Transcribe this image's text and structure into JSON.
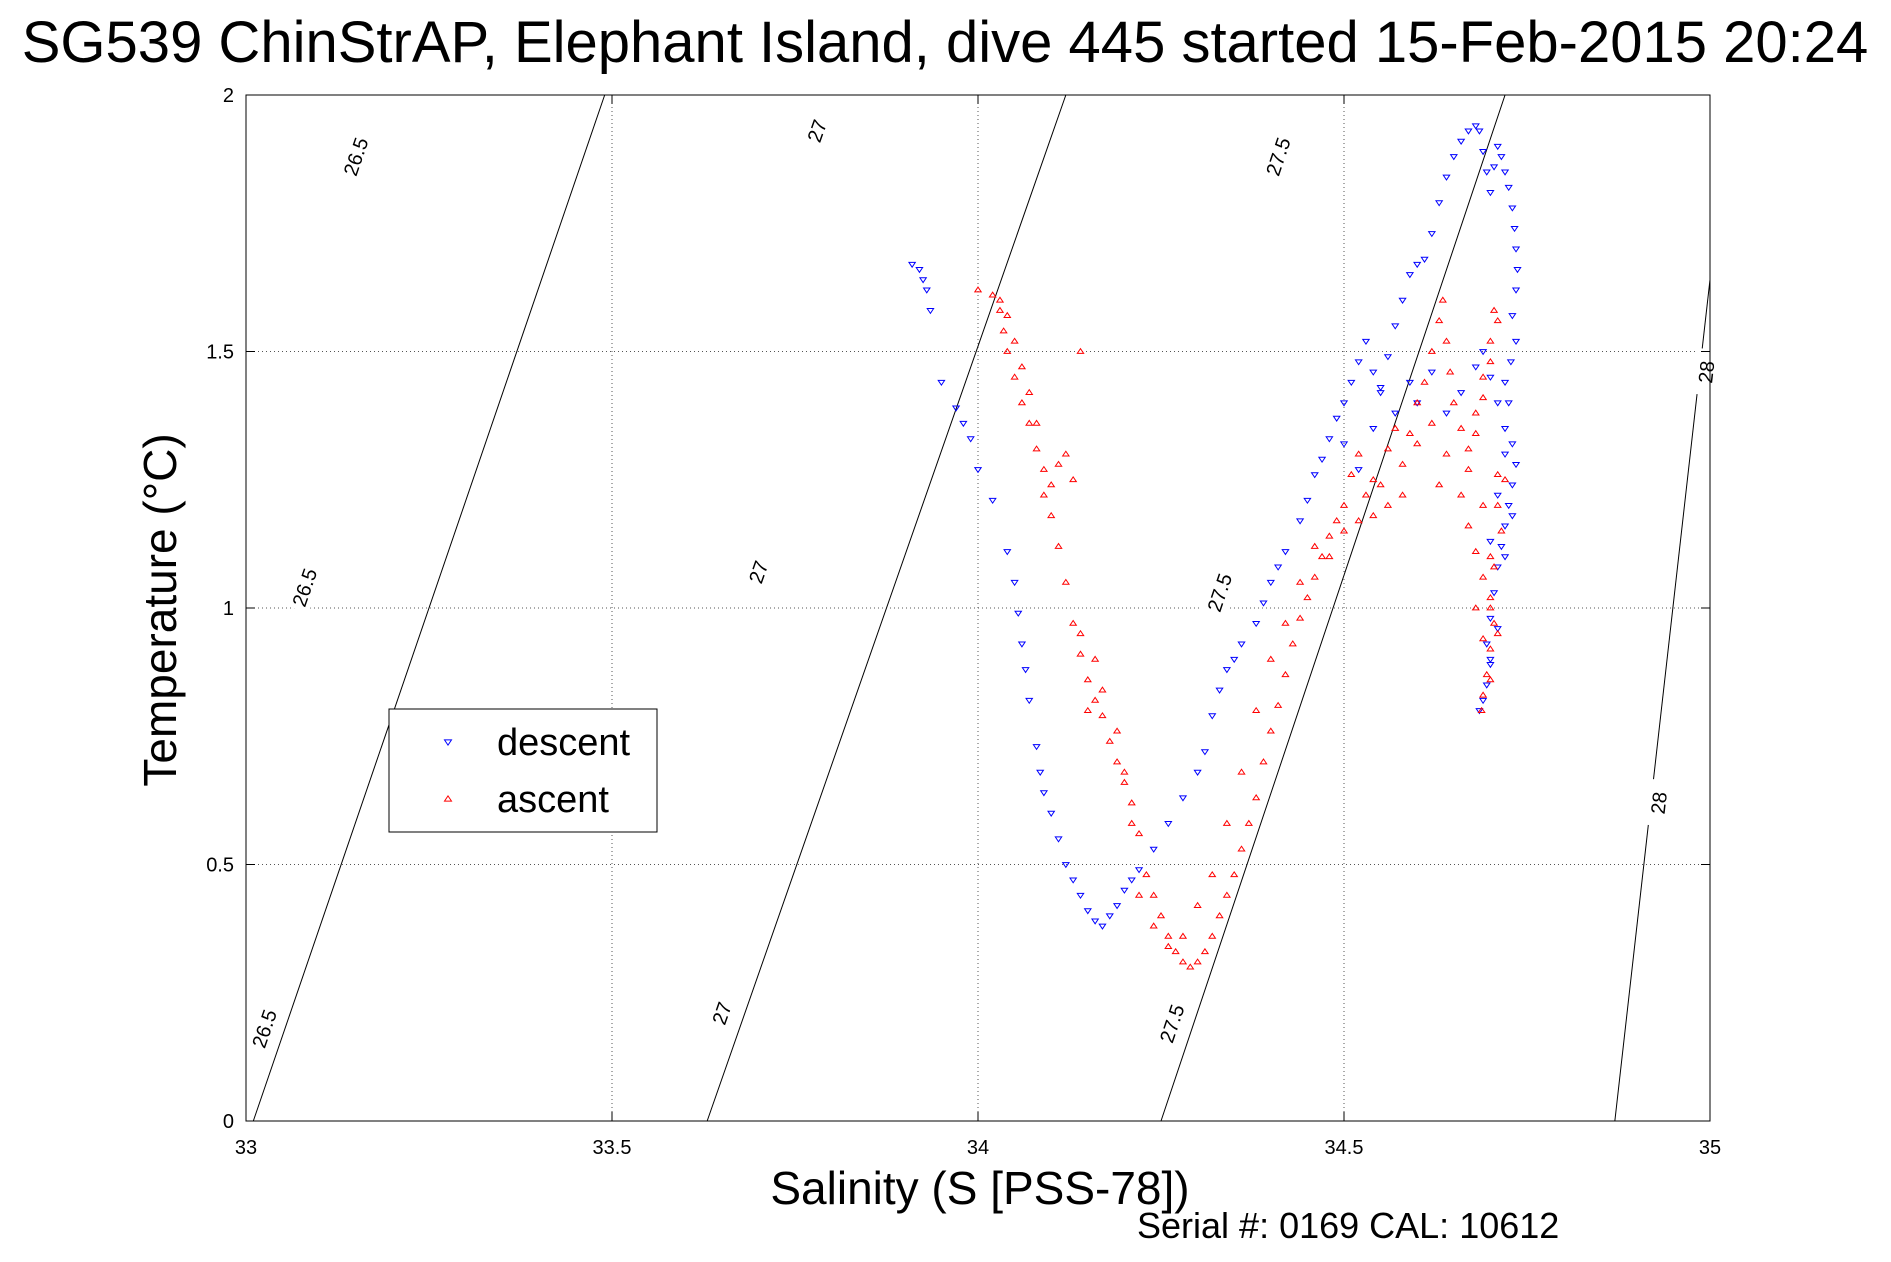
{
  "chart_data": {
    "type": "scatter",
    "title": "SG539 ChinStrAP, Elephant Island, dive 445 started 15-Feb-2015 20:24",
    "xlabel": "Salinity (S [PSS-78])",
    "ylabel": "Temperature (°C)",
    "xlim": [
      33,
      35
    ],
    "ylim": [
      0,
      2
    ],
    "x_ticks": [
      "33",
      "33.5",
      "34",
      "34.5",
      "35"
    ],
    "y_ticks": [
      "0",
      "0.5",
      "1",
      "1.5",
      "2"
    ],
    "grid": true,
    "legend_position": "center-left",
    "serial_text": "Serial #: 0169 CAL: 10612",
    "density_contours": [
      {
        "level": "26.5",
        "points": [
          [
            33.01,
            0
          ],
          [
            33.49,
            2
          ]
        ],
        "label_positions": [
          [
            33.025,
            0.18
          ],
          [
            33.08,
            1.04
          ],
          [
            33.15,
            1.88
          ]
        ]
      },
      {
        "level": "27",
        "points": [
          [
            33.63,
            0
          ],
          [
            34.12,
            2
          ]
        ],
        "label_positions": [
          [
            33.65,
            0.21
          ],
          [
            33.7,
            1.07
          ],
          [
            33.78,
            1.93
          ]
        ]
      },
      {
        "level": "27.5",
        "points": [
          [
            34.25,
            0
          ],
          [
            34.72,
            2
          ]
        ],
        "label_positions": [
          [
            34.265,
            0.19
          ],
          [
            34.33,
            1.03
          ],
          [
            34.41,
            1.88
          ]
        ]
      },
      {
        "level": "28",
        "points": [
          [
            34.87,
            0
          ],
          [
            35,
            1.64
          ]
        ],
        "label_positions": [
          [
            34.93,
            0.62
          ],
          [
            34.995,
            1.46
          ]
        ]
      }
    ],
    "series": [
      {
        "name": "descent",
        "color": "#0000ff",
        "marker": "triangle-down",
        "points": [
          [
            33.91,
            1.67
          ],
          [
            33.92,
            1.66
          ],
          [
            33.925,
            1.64
          ],
          [
            33.93,
            1.62
          ],
          [
            33.935,
            1.58
          ],
          [
            33.95,
            1.44
          ],
          [
            33.97,
            1.39
          ],
          [
            33.98,
            1.36
          ],
          [
            33.99,
            1.33
          ],
          [
            34.0,
            1.27
          ],
          [
            34.02,
            1.21
          ],
          [
            34.04,
            1.11
          ],
          [
            34.05,
            1.05
          ],
          [
            34.055,
            0.99
          ],
          [
            34.06,
            0.93
          ],
          [
            34.065,
            0.88
          ],
          [
            34.07,
            0.82
          ],
          [
            34.08,
            0.73
          ],
          [
            34.085,
            0.68
          ],
          [
            34.09,
            0.64
          ],
          [
            34.1,
            0.6
          ],
          [
            34.11,
            0.55
          ],
          [
            34.12,
            0.5
          ],
          [
            34.13,
            0.47
          ],
          [
            34.14,
            0.44
          ],
          [
            34.15,
            0.41
          ],
          [
            34.16,
            0.39
          ],
          [
            34.17,
            0.38
          ],
          [
            34.18,
            0.4
          ],
          [
            34.19,
            0.42
          ],
          [
            34.2,
            0.45
          ],
          [
            34.21,
            0.47
          ],
          [
            34.22,
            0.49
          ],
          [
            34.24,
            0.53
          ],
          [
            34.26,
            0.58
          ],
          [
            34.28,
            0.63
          ],
          [
            34.3,
            0.68
          ],
          [
            34.31,
            0.72
          ],
          [
            34.32,
            0.79
          ],
          [
            34.33,
            0.84
          ],
          [
            34.34,
            0.88
          ],
          [
            34.35,
            0.9
          ],
          [
            34.36,
            0.93
          ],
          [
            34.38,
            0.97
          ],
          [
            34.39,
            1.01
          ],
          [
            34.4,
            1.05
          ],
          [
            34.41,
            1.08
          ],
          [
            34.42,
            1.11
          ],
          [
            34.44,
            1.17
          ],
          [
            34.45,
            1.21
          ],
          [
            34.46,
            1.26
          ],
          [
            34.47,
            1.29
          ],
          [
            34.48,
            1.33
          ],
          [
            34.49,
            1.37
          ],
          [
            34.5,
            1.4
          ],
          [
            34.51,
            1.44
          ],
          [
            34.52,
            1.48
          ],
          [
            34.53,
            1.52
          ],
          [
            34.54,
            1.46
          ],
          [
            34.55,
            1.43
          ],
          [
            34.56,
            1.49
          ],
          [
            34.57,
            1.55
          ],
          [
            34.58,
            1.6
          ],
          [
            34.59,
            1.65
          ],
          [
            34.6,
            1.67
          ],
          [
            34.61,
            1.68
          ],
          [
            34.62,
            1.73
          ],
          [
            34.63,
            1.79
          ],
          [
            34.64,
            1.84
          ],
          [
            34.65,
            1.88
          ],
          [
            34.66,
            1.91
          ],
          [
            34.67,
            1.93
          ],
          [
            34.68,
            1.94
          ],
          [
            34.685,
            1.93
          ],
          [
            34.69,
            1.89
          ],
          [
            34.695,
            1.85
          ],
          [
            34.7,
            1.81
          ],
          [
            34.705,
            1.86
          ],
          [
            34.71,
            1.9
          ],
          [
            34.715,
            1.88
          ],
          [
            34.72,
            1.85
          ],
          [
            34.725,
            1.82
          ],
          [
            34.73,
            1.78
          ],
          [
            34.733,
            1.74
          ],
          [
            34.735,
            1.7
          ],
          [
            34.737,
            1.66
          ],
          [
            34.735,
            1.62
          ],
          [
            34.73,
            1.57
          ],
          [
            34.735,
            1.52
          ],
          [
            34.728,
            1.48
          ],
          [
            34.72,
            1.44
          ],
          [
            34.725,
            1.4
          ],
          [
            34.72,
            1.35
          ],
          [
            34.73,
            1.32
          ],
          [
            34.735,
            1.28
          ],
          [
            34.73,
            1.24
          ],
          [
            34.725,
            1.2
          ],
          [
            34.72,
            1.16
          ],
          [
            34.715,
            1.12
          ],
          [
            34.71,
            1.08
          ],
          [
            34.705,
            1.03
          ],
          [
            34.7,
            0.98
          ],
          [
            34.695,
            0.93
          ],
          [
            34.7,
            0.89
          ],
          [
            34.695,
            0.85
          ],
          [
            34.69,
            0.82
          ],
          [
            34.685,
            0.8
          ],
          [
            34.5,
            1.32
          ],
          [
            34.52,
            1.27
          ],
          [
            34.54,
            1.35
          ],
          [
            34.55,
            1.42
          ],
          [
            34.57,
            1.38
          ],
          [
            34.59,
            1.44
          ],
          [
            34.6,
            1.4
          ],
          [
            34.62,
            1.46
          ],
          [
            34.64,
            1.38
          ],
          [
            34.66,
            1.42
          ],
          [
            34.68,
            1.47
          ],
          [
            34.69,
            1.5
          ],
          [
            34.7,
            1.45
          ],
          [
            34.71,
            1.4
          ],
          [
            34.72,
            1.3
          ],
          [
            34.73,
            1.18
          ],
          [
            34.71,
            1.22
          ],
          [
            34.7,
            1.13
          ],
          [
            34.72,
            1.1
          ],
          [
            34.71,
            0.96
          ],
          [
            34.7,
            0.9
          ]
        ]
      },
      {
        "name": "ascent",
        "color": "#ff0000",
        "marker": "triangle-up",
        "points": [
          [
            34.0,
            1.62
          ],
          [
            34.02,
            1.61
          ],
          [
            34.03,
            1.58
          ],
          [
            34.035,
            1.54
          ],
          [
            34.04,
            1.5
          ],
          [
            34.05,
            1.45
          ],
          [
            34.06,
            1.4
          ],
          [
            34.07,
            1.36
          ],
          [
            34.08,
            1.31
          ],
          [
            34.09,
            1.27
          ],
          [
            34.1,
            1.24
          ],
          [
            34.1,
            1.18
          ],
          [
            34.11,
            1.12
          ],
          [
            34.12,
            1.05
          ],
          [
            34.13,
            0.97
          ],
          [
            34.14,
            0.91
          ],
          [
            34.15,
            0.86
          ],
          [
            34.16,
            0.82
          ],
          [
            34.17,
            0.79
          ],
          [
            34.18,
            0.74
          ],
          [
            34.19,
            0.7
          ],
          [
            34.2,
            0.66
          ],
          [
            34.21,
            0.62
          ],
          [
            34.22,
            0.56
          ],
          [
            34.23,
            0.48
          ],
          [
            34.24,
            0.44
          ],
          [
            34.25,
            0.4
          ],
          [
            34.26,
            0.36
          ],
          [
            34.27,
            0.33
          ],
          [
            34.28,
            0.31
          ],
          [
            34.29,
            0.3
          ],
          [
            34.3,
            0.31
          ],
          [
            34.31,
            0.33
          ],
          [
            34.32,
            0.36
          ],
          [
            34.33,
            0.4
          ],
          [
            34.34,
            0.44
          ],
          [
            34.35,
            0.48
          ],
          [
            34.36,
            0.53
          ],
          [
            34.37,
            0.58
          ],
          [
            34.38,
            0.63
          ],
          [
            34.39,
            0.7
          ],
          [
            34.4,
            0.76
          ],
          [
            34.41,
            0.81
          ],
          [
            34.42,
            0.87
          ],
          [
            34.43,
            0.93
          ],
          [
            34.44,
            0.98
          ],
          [
            34.45,
            1.02
          ],
          [
            34.46,
            1.06
          ],
          [
            34.47,
            1.1
          ],
          [
            34.48,
            1.14
          ],
          [
            34.49,
            1.17
          ],
          [
            34.5,
            1.2
          ],
          [
            34.51,
            1.26
          ],
          [
            34.52,
            1.3
          ],
          [
            34.53,
            1.22
          ],
          [
            34.54,
            1.18
          ],
          [
            34.55,
            1.24
          ],
          [
            34.56,
            1.31
          ],
          [
            34.57,
            1.35
          ],
          [
            34.58,
            1.28
          ],
          [
            34.59,
            1.34
          ],
          [
            34.6,
            1.4
          ],
          [
            34.61,
            1.44
          ],
          [
            34.62,
            1.5
          ],
          [
            34.63,
            1.56
          ],
          [
            34.635,
            1.6
          ],
          [
            34.64,
            1.52
          ],
          [
            34.645,
            1.46
          ],
          [
            34.65,
            1.4
          ],
          [
            34.66,
            1.35
          ],
          [
            34.67,
            1.31
          ],
          [
            34.68,
            1.38
          ],
          [
            34.69,
            1.45
          ],
          [
            34.7,
            1.52
          ],
          [
            34.705,
            1.58
          ],
          [
            34.71,
            1.56
          ],
          [
            34.7,
            1.48
          ],
          [
            34.69,
            1.41
          ],
          [
            34.68,
            1.34
          ],
          [
            34.67,
            1.27
          ],
          [
            34.66,
            1.22
          ],
          [
            34.67,
            1.16
          ],
          [
            34.68,
            1.11
          ],
          [
            34.69,
            1.06
          ],
          [
            34.7,
            1.02
          ],
          [
            34.705,
            0.97
          ],
          [
            34.7,
            0.92
          ],
          [
            34.695,
            0.87
          ],
          [
            34.69,
            0.83
          ],
          [
            34.688,
            0.8
          ],
          [
            34.71,
            1.2
          ],
          [
            34.72,
            1.25
          ],
          [
            34.715,
            1.15
          ],
          [
            34.705,
            1.08
          ],
          [
            34.7,
            1.0
          ],
          [
            34.71,
            0.95
          ],
          [
            34.7,
            1.1
          ],
          [
            34.69,
            1.2
          ],
          [
            34.71,
            1.26
          ],
          [
            34.68,
            1.0
          ],
          [
            34.69,
            0.94
          ],
          [
            34.7,
            0.86
          ],
          [
            34.64,
            1.3
          ],
          [
            34.63,
            1.24
          ],
          [
            34.62,
            1.36
          ],
          [
            34.6,
            1.32
          ],
          [
            34.58,
            1.22
          ],
          [
            34.56,
            1.2
          ],
          [
            34.54,
            1.25
          ],
          [
            34.52,
            1.17
          ],
          [
            34.5,
            1.15
          ],
          [
            34.48,
            1.1
          ],
          [
            34.46,
            1.12
          ],
          [
            34.44,
            1.05
          ],
          [
            34.42,
            0.97
          ],
          [
            34.4,
            0.9
          ],
          [
            34.38,
            0.8
          ],
          [
            34.36,
            0.68
          ],
          [
            34.34,
            0.58
          ],
          [
            34.32,
            0.48
          ],
          [
            34.3,
            0.42
          ],
          [
            34.28,
            0.36
          ],
          [
            34.26,
            0.34
          ],
          [
            34.24,
            0.38
          ],
          [
            34.22,
            0.44
          ],
          [
            34.21,
            0.58
          ],
          [
            34.2,
            0.68
          ],
          [
            34.19,
            0.76
          ],
          [
            34.17,
            0.84
          ],
          [
            34.16,
            0.9
          ],
          [
            34.15,
            0.8
          ],
          [
            34.14,
            0.95
          ],
          [
            34.13,
            1.25
          ],
          [
            34.12,
            1.3
          ],
          [
            34.11,
            1.28
          ],
          [
            34.09,
            1.22
          ],
          [
            34.08,
            1.36
          ],
          [
            34.07,
            1.42
          ],
          [
            34.06,
            1.47
          ],
          [
            34.05,
            1.52
          ],
          [
            34.04,
            1.57
          ],
          [
            34.03,
            1.6
          ],
          [
            34.14,
            1.5
          ]
        ]
      }
    ]
  }
}
